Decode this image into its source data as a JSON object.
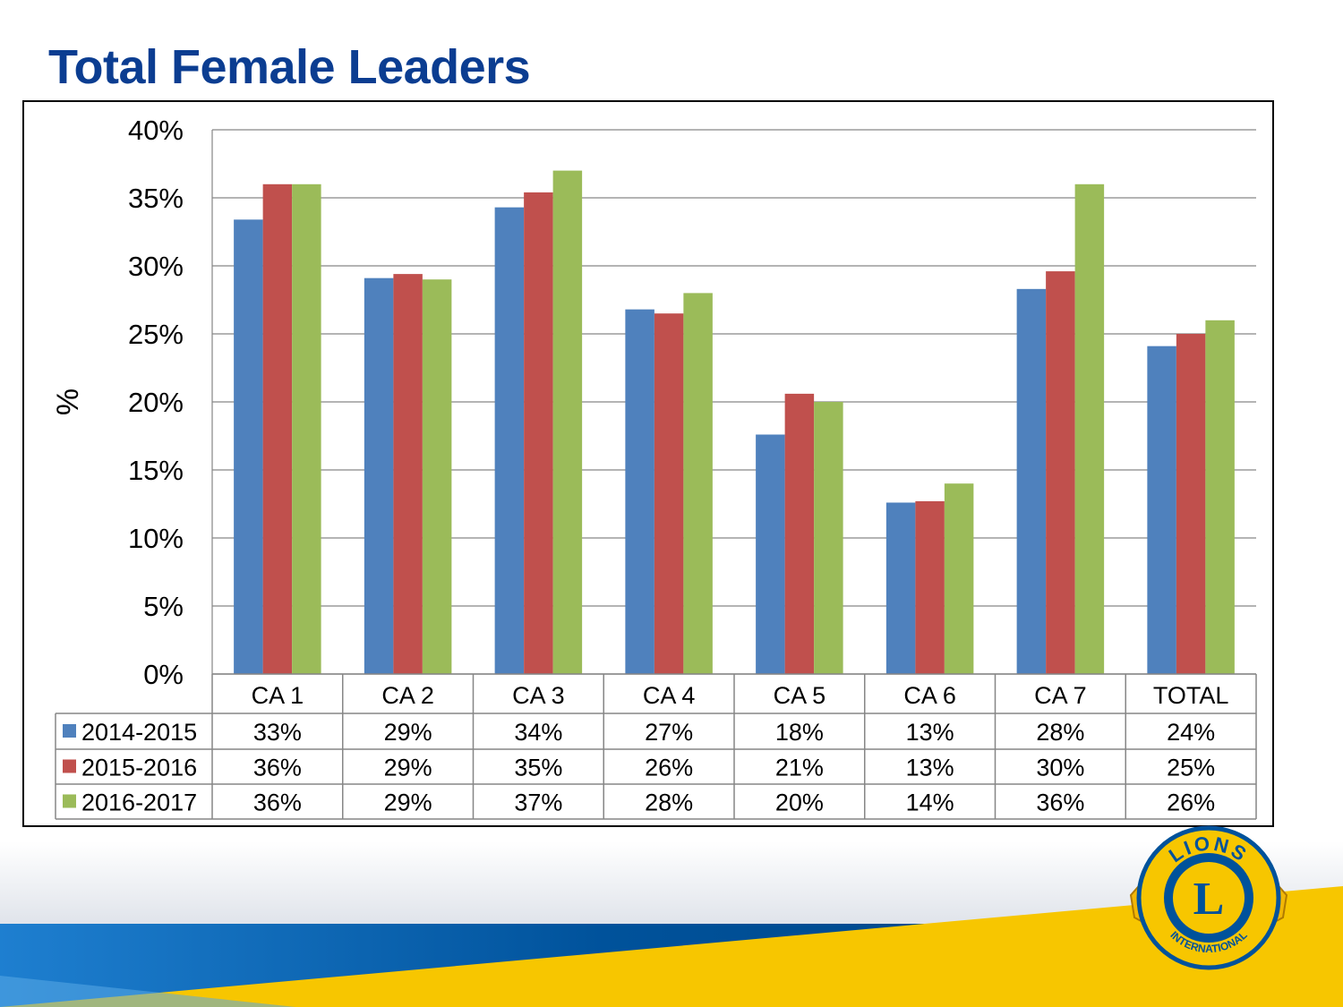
{
  "title": "Total Female Leaders",
  "colors": {
    "title": "#0b3d91",
    "series": [
      "#4f81bd",
      "#c0504d",
      "#9bbb59"
    ],
    "grid": "#868686",
    "band_blue": "#00529b",
    "band_gold": "#f7c600"
  },
  "chart_data": {
    "type": "bar",
    "title": "",
    "xlabel": "",
    "ylabel": "%",
    "ylim": [
      0,
      0.4
    ],
    "yticks": [
      {
        "value": 0,
        "label": "0%"
      },
      {
        "value": 0.05,
        "label": "5%"
      },
      {
        "value": 0.1,
        "label": "10%"
      },
      {
        "value": 0.15,
        "label": "15%"
      },
      {
        "value": 0.2,
        "label": "20%"
      },
      {
        "value": 0.25,
        "label": "25%"
      },
      {
        "value": 0.3,
        "label": "30%"
      },
      {
        "value": 0.35,
        "label": "35%"
      },
      {
        "value": 0.4,
        "label": "40%"
      }
    ],
    "grid": true,
    "legend": "data-table",
    "categories": [
      "CA 1",
      "CA 2",
      "CA 3",
      "CA 4",
      "CA 5",
      "CA 6",
      "CA 7",
      "TOTAL"
    ],
    "series": [
      {
        "name": "2014-2015",
        "values": [
          0.334,
          0.291,
          0.343,
          0.268,
          0.176,
          0.126,
          0.283,
          0.241
        ],
        "labels": [
          "33%",
          "29%",
          "34%",
          "27%",
          "18%",
          "13%",
          "28%",
          "24%"
        ]
      },
      {
        "name": "2015-2016",
        "values": [
          0.36,
          0.294,
          0.354,
          0.265,
          0.206,
          0.127,
          0.296,
          0.25
        ],
        "labels": [
          "36%",
          "29%",
          "35%",
          "26%",
          "21%",
          "13%",
          "30%",
          "25%"
        ]
      },
      {
        "name": "2016-2017",
        "values": [
          0.36,
          0.29,
          0.37,
          0.28,
          0.2,
          0.14,
          0.36,
          0.26
        ],
        "labels": [
          "36%",
          "29%",
          "37%",
          "28%",
          "20%",
          "14%",
          "36%",
          "26%"
        ]
      }
    ]
  },
  "logo": {
    "top_text": "LIONS",
    "center_letter": "L",
    "bottom_text": "INTERNATIONAL"
  }
}
